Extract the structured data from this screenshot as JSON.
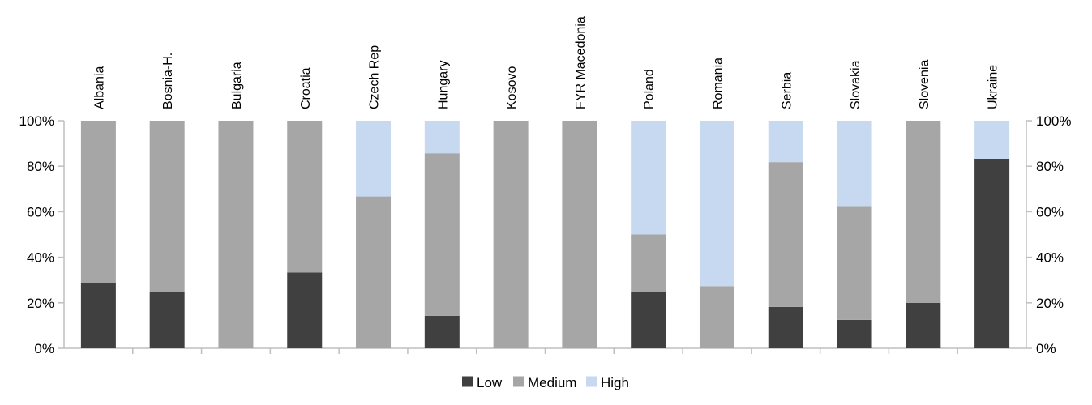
{
  "chart_data": {
    "type": "bar",
    "stacked": true,
    "title": "",
    "xlabel": "",
    "ylabel": "",
    "categories": [
      "Albania",
      "Bosnia-H.",
      "Bulgaria",
      "Croatia",
      "Czech Rep",
      "Hungary",
      "Kosovo",
      "FYR Macedonia",
      "Poland",
      "Romania",
      "Serbia",
      "Slovakia",
      "Slovenia",
      "Ukraine"
    ],
    "series": [
      {
        "name": "Low",
        "values": [
          28.6,
          25,
          0,
          33.3,
          0,
          14.3,
          0,
          0,
          25,
          0,
          18.2,
          12.5,
          20,
          83.3
        ]
      },
      {
        "name": "Medium",
        "values": [
          71.4,
          75,
          100,
          66.7,
          66.7,
          71.4,
          100,
          100,
          25,
          27.3,
          63.6,
          50,
          80,
          0
        ]
      },
      {
        "name": "High",
        "values": [
          0,
          0,
          0,
          0,
          33.3,
          14.3,
          0,
          0,
          50,
          72.7,
          18.2,
          37.5,
          0,
          16.7
        ]
      }
    ],
    "ylim": [
      0,
      100
    ],
    "yticks": [
      "0%",
      "20%",
      "40%",
      "60%",
      "80%",
      "100%"
    ],
    "ytick_values": [
      0,
      20,
      40,
      60,
      80,
      100
    ],
    "legend": {
      "position": "bottom",
      "entries": [
        "Low",
        "Medium",
        "High"
      ]
    },
    "colors": {
      "Low": "#404040",
      "Medium": "#a6a6a6",
      "High": "#c6d9f1",
      "axis": "#bfbfbf"
    },
    "grid": false,
    "secondary_y_axis": true
  }
}
